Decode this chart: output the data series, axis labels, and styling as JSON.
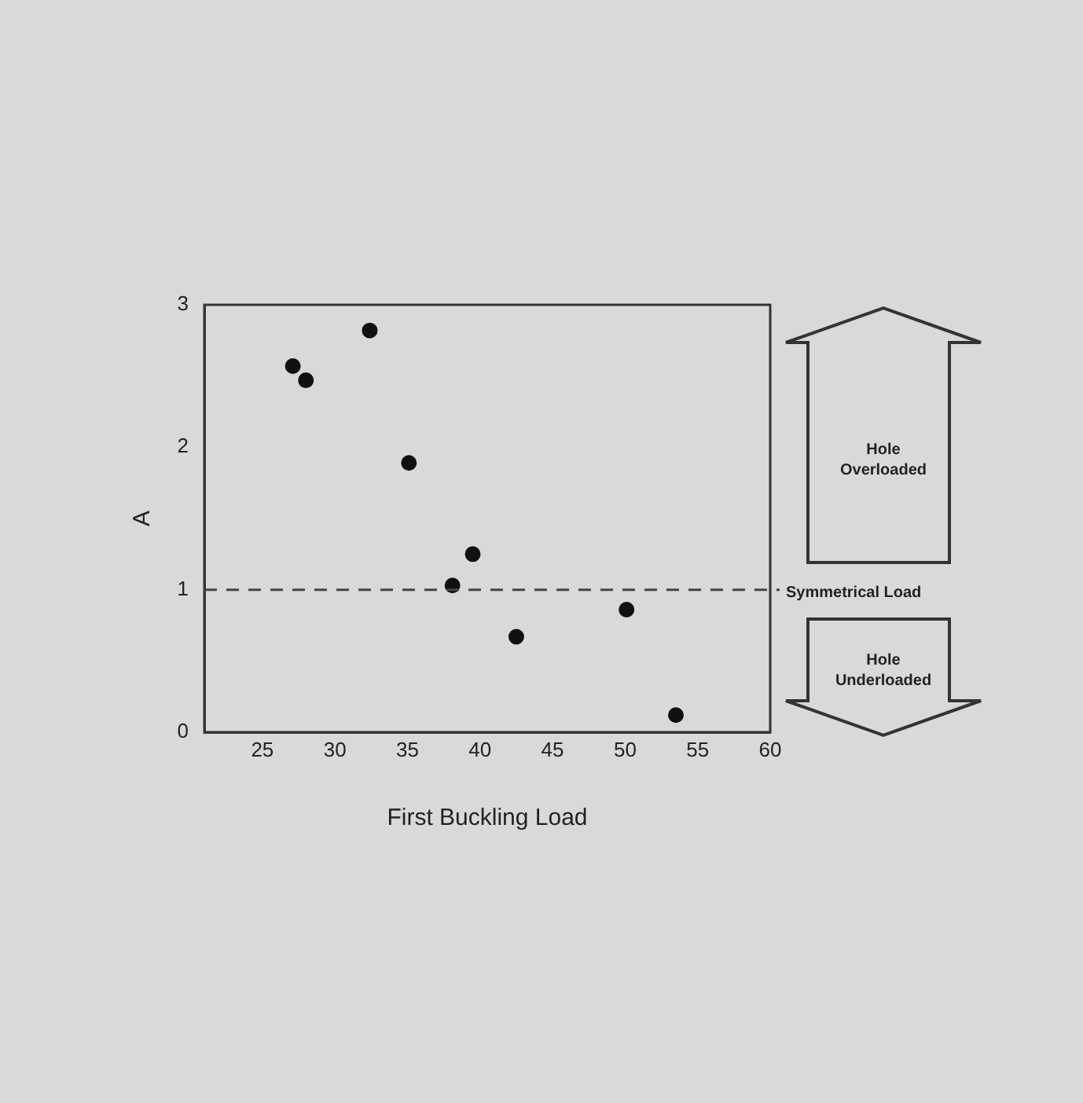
{
  "chart_data": {
    "type": "scatter",
    "xlabel": "First Buckling Load",
    "ylabel": "A",
    "x": [
      27.1,
      28.0,
      32.4,
      35.1,
      38.1,
      39.5,
      42.5,
      50.1,
      53.5
    ],
    "series": [
      {
        "color": "#111111",
        "values": [
          2.57,
          2.47,
          2.82,
          1.89,
          1.03,
          1.25,
          0.67,
          0.86,
          0.12
        ]
      }
    ],
    "xlim": [
      21,
      60
    ],
    "xticks": [
      25,
      30,
      35,
      40,
      45,
      50,
      55,
      60
    ],
    "ylim": [
      0,
      3
    ],
    "yticks": [
      0,
      1,
      2,
      3
    ],
    "ref_lines": [
      {
        "axis": "y",
        "value": 1,
        "label": "Symmetrical Load",
        "line_style": "dashed",
        "color": "#444444"
      }
    ],
    "annotations": [
      "Hole Overloaded",
      "Hole Underloaded"
    ],
    "grid": false,
    "legend": false,
    "marker": "circle"
  }
}
